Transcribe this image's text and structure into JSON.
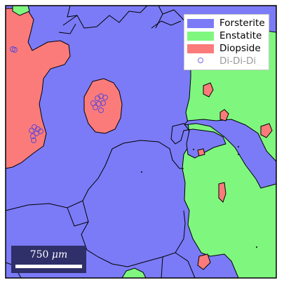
{
  "legend": {
    "entries": [
      {
        "label": "Forsterite",
        "color": "#7b7bf7"
      },
      {
        "label": "Enstatite",
        "color": "#7ff77f"
      },
      {
        "label": "Diopside",
        "color": "#fb7b7b"
      }
    ],
    "marker_label": "Di-Di-Di",
    "marker_color": "#7a6ad8"
  },
  "scalebar": {
    "value": "750",
    "unit": "μm"
  }
}
